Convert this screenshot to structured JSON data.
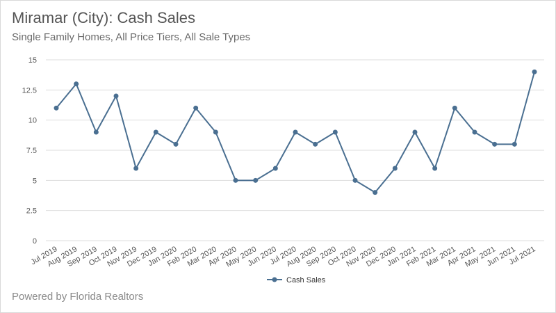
{
  "title": "Miramar (City): Cash Sales",
  "subtitle": "Single Family Homes, All Price Tiers, All Sale Types",
  "credit": "Powered by Florida Realtors",
  "colors": {
    "series": "#4a6f91",
    "grid": "#dddddd",
    "text": "#555555"
  },
  "chart_data": {
    "type": "line",
    "title": "Miramar (City): Cash Sales",
    "subtitle": "Single Family Homes, All Price Tiers, All Sale Types",
    "xlabel": "",
    "ylabel": "",
    "ylim": [
      0,
      15
    ],
    "yticks": [
      0,
      2.5,
      5,
      7.5,
      10,
      12.5,
      15
    ],
    "ytick_labels": [
      "0",
      "2.5",
      "5",
      "7.5",
      "10",
      "12.5",
      "15"
    ],
    "grid": true,
    "legend": "bottom-center",
    "categories": [
      "Jul 2019",
      "Aug 2019",
      "Sep 2019",
      "Oct 2019",
      "Nov 2019",
      "Dec 2019",
      "Jan 2020",
      "Feb 2020",
      "Mar 2020",
      "Apr 2020",
      "May 2020",
      "Jun 2020",
      "Jul 2020",
      "Aug 2020",
      "Sep 2020",
      "Oct 2020",
      "Nov 2020",
      "Dec 2020",
      "Jan 2021",
      "Feb 2021",
      "Mar 2021",
      "Apr 2021",
      "May 2021",
      "Jun 2021",
      "Jul 2021"
    ],
    "series": [
      {
        "name": "Cash Sales",
        "values": [
          11,
          13,
          9,
          12,
          6,
          9,
          8,
          11,
          9,
          5,
          5,
          6,
          9,
          8,
          9,
          5,
          4,
          6,
          9,
          6,
          11,
          9,
          8,
          8,
          14
        ]
      }
    ]
  }
}
